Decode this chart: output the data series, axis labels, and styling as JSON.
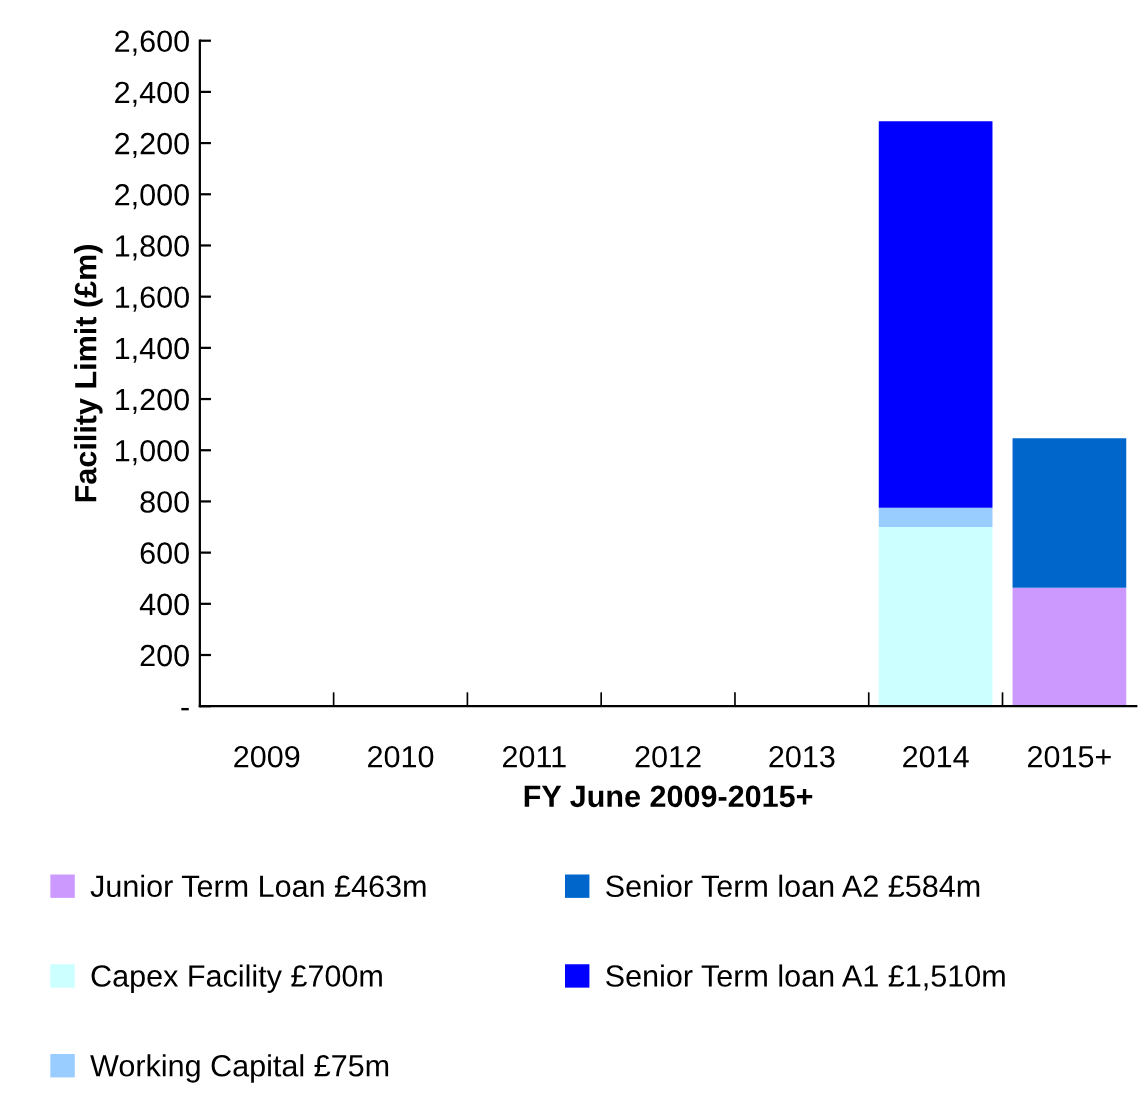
{
  "chart_data": {
    "type": "bar",
    "stacked": true,
    "xlabel": "FY June 2009-2015+",
    "ylabel": "Facility Limit (£m)",
    "categories": [
      "2009",
      "2010",
      "2011",
      "2012",
      "2013",
      "2014",
      "2015+"
    ],
    "series": [
      {
        "name": "Junior Term Loan £463m",
        "color": "#cc99ff",
        "values": [
          null,
          null,
          null,
          null,
          null,
          null,
          463
        ]
      },
      {
        "name": "Capex Facility £700m",
        "color": "#ccffff",
        "values": [
          null,
          null,
          null,
          null,
          null,
          700,
          null
        ]
      },
      {
        "name": "Working Capital £75m",
        "color": "#99ccff",
        "values": [
          null,
          null,
          null,
          null,
          null,
          75,
          null
        ]
      },
      {
        "name": "Senior Term loan A2 £584m",
        "color": "#0066cc",
        "values": [
          null,
          null,
          null,
          null,
          null,
          null,
          584
        ]
      },
      {
        "name": "Senior Term loan A1 £1,510m",
        "color": "#0000ff",
        "values": [
          null,
          null,
          null,
          null,
          null,
          1510,
          null
        ]
      }
    ],
    "ylim": [
      0,
      2600
    ],
    "yticks": [
      {
        "value": 0,
        "label": "-"
      },
      {
        "value": 200,
        "label": "200"
      },
      {
        "value": 400,
        "label": "400"
      },
      {
        "value": 600,
        "label": "600"
      },
      {
        "value": 800,
        "label": "800"
      },
      {
        "value": 1000,
        "label": "1,000"
      },
      {
        "value": 1200,
        "label": "1,200"
      },
      {
        "value": 1400,
        "label": "1,400"
      },
      {
        "value": 1600,
        "label": "1,600"
      },
      {
        "value": 1800,
        "label": "1,800"
      },
      {
        "value": 2000,
        "label": "2,000"
      },
      {
        "value": 2200,
        "label": "2,200"
      },
      {
        "value": 2400,
        "label": "2,400"
      },
      {
        "value": 2600,
        "label": "2,600"
      }
    ],
    "grid": false,
    "legend": "bottom"
  }
}
